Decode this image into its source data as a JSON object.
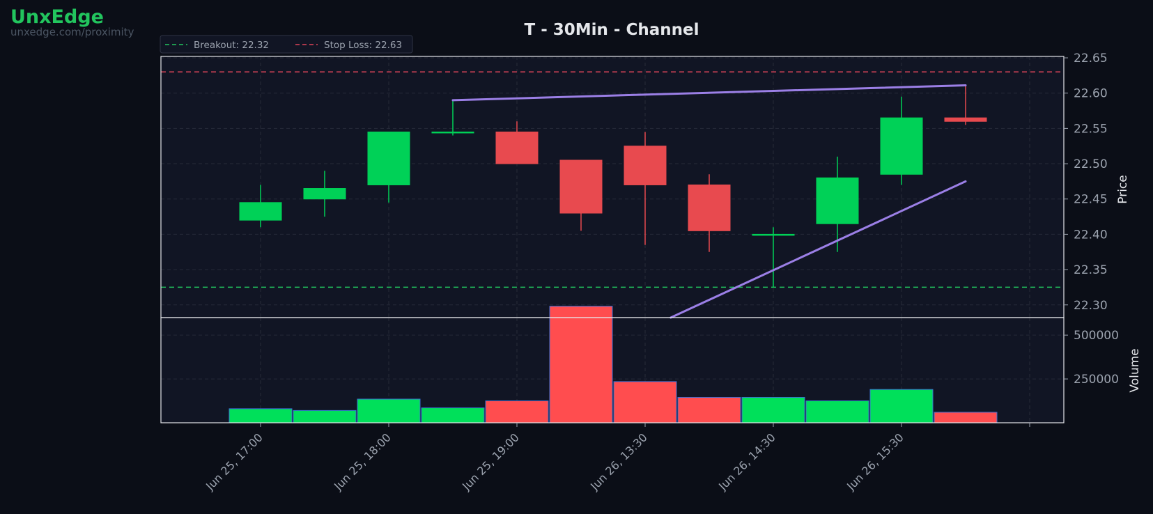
{
  "brand": {
    "name": "UnxEdge",
    "url": "unxedge.com/proximity"
  },
  "colors": {
    "background": "#0b0e17",
    "panel": "#111524",
    "up": "#00d157",
    "down": "#e84a4f",
    "volume_up": "#00e05a",
    "volume_down": "#ff4d4f",
    "trendline": "#9b7fe6",
    "breakout": "#22c55e",
    "stop_loss": "#e0455a",
    "grid": "#262a38",
    "tick_text": "#9ca3af",
    "axis_label": "#e5e7eb"
  },
  "chart_data": {
    "type": "candlestick",
    "title": "T - 30Min - Channel",
    "ylabel": "Price",
    "ylabel_volume": "Volume",
    "ylim": [
      22.282,
      22.652
    ],
    "volume_ylim": [
      0,
      600000
    ],
    "yticks": [
      "22.30",
      "22.35",
      "22.40",
      "22.45",
      "22.50",
      "22.55",
      "22.60",
      "22.65"
    ],
    "volume_yticks": [
      "250000",
      "500000"
    ],
    "xtick_labels": [
      "Jun 25, 17:00",
      "Jun 25, 18:00",
      "Jun 25, 19:00",
      "Jun 26, 13:30",
      "Jun 26, 14:30",
      "Jun 26, 15:30"
    ],
    "legend": [
      {
        "label": "Breakout: 22.32",
        "color": "#22c55e"
      },
      {
        "label": "Stop Loss: 22.63",
        "color": "#e0455a"
      }
    ],
    "legend_position": "top-left",
    "candles": [
      {
        "t": "Jun 25, 17:00",
        "open": 22.42,
        "high": 22.47,
        "low": 22.41,
        "close": 22.445,
        "volume": 80000
      },
      {
        "t": "Jun 25, 17:30",
        "open": 22.45,
        "high": 22.49,
        "low": 22.425,
        "close": 22.465,
        "volume": 70000
      },
      {
        "t": "Jun 25, 18:00",
        "open": 22.47,
        "high": 22.545,
        "low": 22.445,
        "close": 22.545,
        "volume": 135000
      },
      {
        "t": "Jun 25, 18:30",
        "open": 22.545,
        "high": 22.59,
        "low": 22.54,
        "close": 22.545,
        "volume": 85000
      },
      {
        "t": "Jun 25, 19:00",
        "open": 22.545,
        "high": 22.56,
        "low": 22.5,
        "close": 22.5,
        "volume": 125000
      },
      {
        "t": "Jun 25, 19:30",
        "open": 22.505,
        "high": 22.505,
        "low": 22.405,
        "close": 22.43,
        "volume": 665000
      },
      {
        "t": "Jun 26, 13:30",
        "open": 22.525,
        "high": 22.545,
        "low": 22.385,
        "close": 22.47,
        "volume": 235000
      },
      {
        "t": "Jun 26, 14:00",
        "open": 22.47,
        "high": 22.485,
        "low": 22.375,
        "close": 22.405,
        "volume": 145000
      },
      {
        "t": "Jun 26, 14:30",
        "open": 22.4,
        "high": 22.41,
        "low": 22.325,
        "close": 22.4,
        "volume": 145000
      },
      {
        "t": "Jun 26, 15:00",
        "open": 22.415,
        "high": 22.51,
        "low": 22.375,
        "close": 22.48,
        "volume": 125000
      },
      {
        "t": "Jun 26, 15:30",
        "open": 22.485,
        "high": 22.595,
        "low": 22.47,
        "close": 22.565,
        "volume": 190000
      },
      {
        "t": "Jun 26, 16:00",
        "open": 22.565,
        "high": 22.61,
        "low": 22.555,
        "close": 22.56,
        "volume": 60000
      }
    ],
    "breakout": 22.325,
    "stop_loss": 22.63,
    "trendlines": [
      {
        "name": "upper",
        "from": {
          "index": 3,
          "price": 22.59
        },
        "to": {
          "index": 11,
          "price": 22.611
        }
      },
      {
        "name": "lower",
        "from": {
          "index": 6.4,
          "price": 22.282
        },
        "to": {
          "index": 11,
          "price": 22.475
        }
      }
    ],
    "grid": true
  }
}
